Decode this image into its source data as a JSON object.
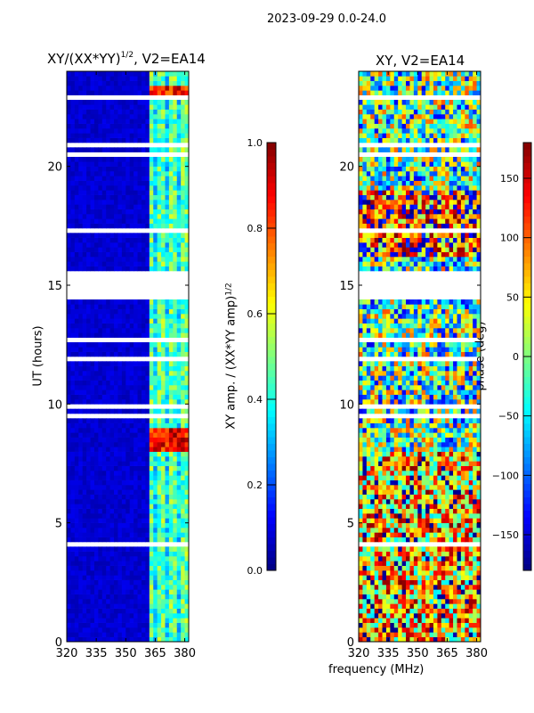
{
  "suptitle": "2023-09-29 0.0-24.0",
  "chart_data": [
    {
      "type": "heatmap",
      "title_main": "XY/(XX*YY)",
      "title_sup": "1/2",
      "title_tail": ", V2=EA14",
      "xlabel": "frequency (MHz)",
      "ylabel": "UT (hours)",
      "xlim": [
        320,
        382
      ],
      "ylim": [
        0,
        24
      ],
      "xticks": [
        320,
        335,
        350,
        365,
        380
      ],
      "yticks": [
        0,
        5,
        10,
        15,
        20
      ],
      "colorbar": {
        "label_main": "XY amp. / (XX*YY amp)",
        "label_sup": "1/2",
        "range": [
          0,
          1
        ],
        "ticks": [
          "0.0",
          "0.2",
          "0.4",
          "0.6",
          "0.8",
          "1.0"
        ],
        "tick_values": [
          0,
          0.2,
          0.4,
          0.6,
          0.8,
          1.0
        ],
        "colormap": "jet"
      },
      "blank_hours": [
        [
          14.5,
          15.6
        ]
      ],
      "bright_band_mhz": [
        362,
        381
      ],
      "peak_hours": [
        [
          7.9,
          8.8
        ],
        [
          22.9,
          23.3
        ]
      ]
    },
    {
      "type": "heatmap",
      "title": "XY, V2=EA14",
      "xlabel": "frequency (MHz)",
      "xlim": [
        320,
        382
      ],
      "ylim": [
        0,
        24
      ],
      "xticks": [
        320,
        335,
        350,
        365,
        380
      ],
      "yticks": [
        0,
        5,
        10,
        15,
        20
      ],
      "colorbar": {
        "label": "phase (deg)",
        "range": [
          -180,
          180
        ],
        "ticks": [
          "−150",
          "−100",
          "−50",
          "0",
          "50",
          "100",
          "150"
        ],
        "tick_values": [
          -150,
          -100,
          -50,
          0,
          50,
          100,
          150
        ],
        "colormap": "jet"
      },
      "blank_hours": [
        [
          14.5,
          15.6
        ]
      ]
    }
  ]
}
